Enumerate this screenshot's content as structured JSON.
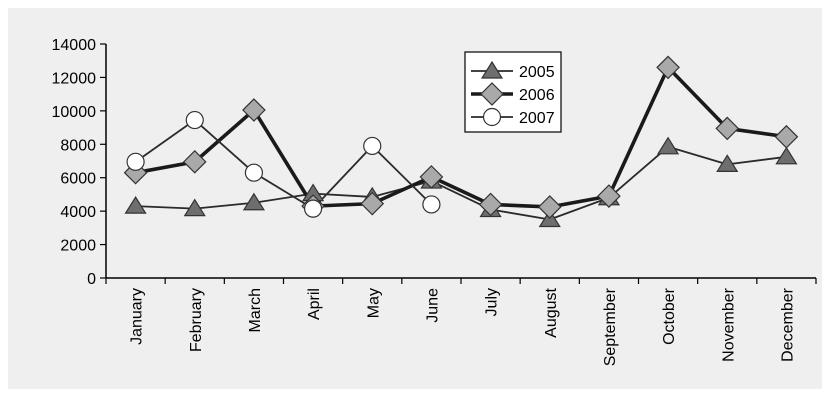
{
  "chart_data": {
    "type": "line",
    "title": "",
    "xlabel": "",
    "ylabel": "",
    "categories": [
      "January",
      "February",
      "March",
      "April",
      "May",
      "June",
      "July",
      "August",
      "September",
      "October",
      "November",
      "December"
    ],
    "ylim": [
      0,
      14000
    ],
    "yticks": [
      0,
      2000,
      4000,
      6000,
      8000,
      10000,
      12000,
      14000
    ],
    "ytick_labels": [
      "0",
      "2000",
      "4000",
      "6000",
      "8000",
      "10000",
      "12000",
      "14000"
    ],
    "grid": false,
    "legend_position": "top-center",
    "series": [
      {
        "name": "2005",
        "marker": "triangle",
        "marker_color": "#6e6e6e",
        "line_color": "#2a2a2a",
        "line_weight": "thin",
        "values": [
          4300,
          4150,
          4500,
          5050,
          4850,
          5800,
          4100,
          3500,
          4800,
          7850,
          6800,
          7250
        ]
      },
      {
        "name": "2006",
        "marker": "diamond",
        "marker_color": "#a9a9a9",
        "line_color": "#1a1a1a",
        "line_weight": "thick",
        "values": [
          6300,
          6950,
          10050,
          4300,
          4450,
          6050,
          4400,
          4250,
          4900,
          12600,
          8950,
          8450
        ]
      },
      {
        "name": "2007",
        "marker": "circle",
        "marker_color": "#ffffff",
        "line_color": "#2a2a2a",
        "line_weight": "thin",
        "values": [
          6950,
          9450,
          6300,
          4150,
          7900,
          4400,
          null,
          null,
          null,
          null,
          null,
          null
        ]
      }
    ]
  }
}
